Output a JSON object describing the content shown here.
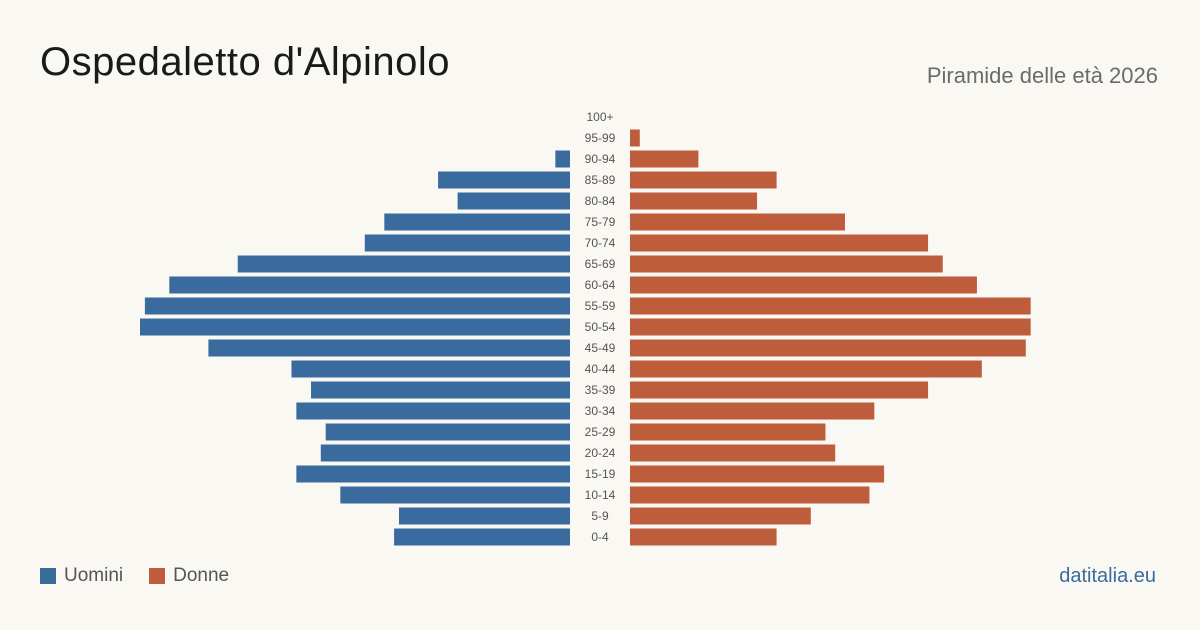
{
  "header": {
    "title": "Ospedaletto d'Alpinolo",
    "subtitle": "Piramide delle età 2026"
  },
  "legend": {
    "men_label": "Uomini",
    "women_label": "Donne"
  },
  "footer": {
    "site": "datitalia.eu"
  },
  "colors": {
    "men": "#3a6b9e",
    "women": "#bd5d3c"
  },
  "chart_data": {
    "type": "bar",
    "orientation": "horizontal-pyramid",
    "title": "Ospedaletto d'Alpinolo",
    "subtitle": "Piramide delle età 2026",
    "categories": [
      "100+",
      "95-99",
      "90-94",
      "85-89",
      "80-84",
      "75-79",
      "70-74",
      "65-69",
      "60-64",
      "55-59",
      "50-54",
      "45-49",
      "40-44",
      "35-39",
      "30-34",
      "25-29",
      "20-24",
      "15-19",
      "10-14",
      "5-9",
      "0-4"
    ],
    "series": [
      {
        "name": "Uomini",
        "values": [
          0,
          0,
          3,
          27,
          23,
          38,
          42,
          68,
          82,
          87,
          88,
          74,
          57,
          53,
          56,
          50,
          51,
          56,
          47,
          35,
          36
        ]
      },
      {
        "name": "Donne",
        "values": [
          0,
          2,
          14,
          30,
          26,
          44,
          61,
          64,
          71,
          82,
          82,
          81,
          72,
          61,
          50,
          40,
          42,
          52,
          49,
          37,
          30
        ]
      }
    ],
    "grid": false,
    "legend_position": "bottom-left"
  }
}
